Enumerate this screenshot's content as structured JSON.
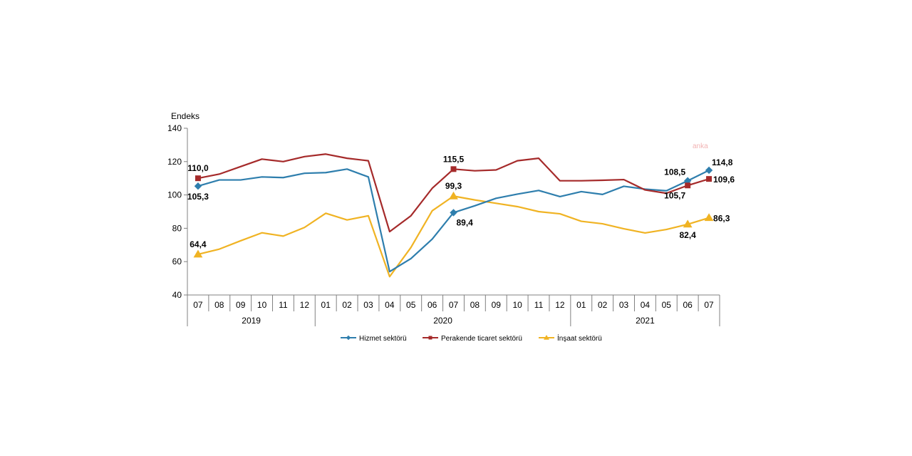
{
  "watermark": "anka",
  "chart_data": {
    "type": "line",
    "ylabel": "Endeks",
    "ylim": [
      40,
      140
    ],
    "yticks": [
      "40",
      "60",
      "80",
      "100",
      "120",
      "140"
    ],
    "grid": false,
    "legend_position": "bottom",
    "categories": [
      "07",
      "08",
      "09",
      "10",
      "11",
      "12",
      "01",
      "02",
      "03",
      "04",
      "05",
      "06",
      "07",
      "08",
      "09",
      "10",
      "11",
      "12",
      "01",
      "02",
      "03",
      "04",
      "05",
      "06",
      "07"
    ],
    "years": [
      {
        "label": "2019",
        "start": 0,
        "end": 5
      },
      {
        "label": "2020",
        "start": 6,
        "end": 17
      },
      {
        "label": "2021",
        "start": 18,
        "end": 24
      }
    ],
    "series": [
      {
        "name": "Hizmet sektörü",
        "color": "#2e7ead",
        "marker": "diamond",
        "values": [
          105.3,
          109.0,
          109.0,
          110.8,
          110.4,
          113.0,
          113.4,
          115.5,
          110.8,
          54.0,
          61.8,
          73.5,
          89.4,
          93.5,
          98.0,
          100.5,
          102.7,
          99.0,
          102.0,
          100.3,
          105.2,
          103.5,
          102.5,
          108.5,
          114.8
        ],
        "labeled": [
          {
            "i": 0,
            "text": "105,3",
            "pos": "below"
          },
          {
            "i": 12,
            "text": "89,4",
            "pos": "below-right"
          },
          {
            "i": 23,
            "text": "108,5",
            "pos": "above-left"
          },
          {
            "i": 24,
            "text": "114,8",
            "pos": "above-right"
          }
        ]
      },
      {
        "name": "Perakende ticaret sektörü",
        "color": "#a52a2a",
        "marker": "square",
        "values": [
          110.0,
          112.5,
          117.0,
          121.5,
          120.0,
          123.0,
          124.5,
          122.0,
          120.5,
          78.0,
          87.5,
          104.0,
          115.5,
          114.5,
          115.0,
          120.5,
          122.0,
          108.5,
          108.5,
          108.8,
          109.2,
          103.0,
          101.0,
          105.7,
          109.6
        ],
        "labeled": [
          {
            "i": 0,
            "text": "110,0",
            "pos": "above"
          },
          {
            "i": 12,
            "text": "115,5",
            "pos": "above"
          },
          {
            "i": 23,
            "text": "105,7",
            "pos": "below-left"
          },
          {
            "i": 24,
            "text": "109,6",
            "pos": "right"
          }
        ]
      },
      {
        "name": "İnşaat sektörü",
        "color": "#f0b323",
        "marker": "triangle",
        "values": [
          64.4,
          67.5,
          72.5,
          77.3,
          75.3,
          80.5,
          89.0,
          85.0,
          87.5,
          51.0,
          68.5,
          90.5,
          99.3,
          97.0,
          95.0,
          93.0,
          90.0,
          88.7,
          84.2,
          82.7,
          79.7,
          77.2,
          79.3,
          82.4,
          86.3
        ],
        "labeled": [
          {
            "i": 0,
            "text": "64,4",
            "pos": "above"
          },
          {
            "i": 12,
            "text": "99,3",
            "pos": "above"
          },
          {
            "i": 23,
            "text": "82,4",
            "pos": "below"
          },
          {
            "i": 24,
            "text": "86,3",
            "pos": "right"
          }
        ]
      }
    ]
  }
}
